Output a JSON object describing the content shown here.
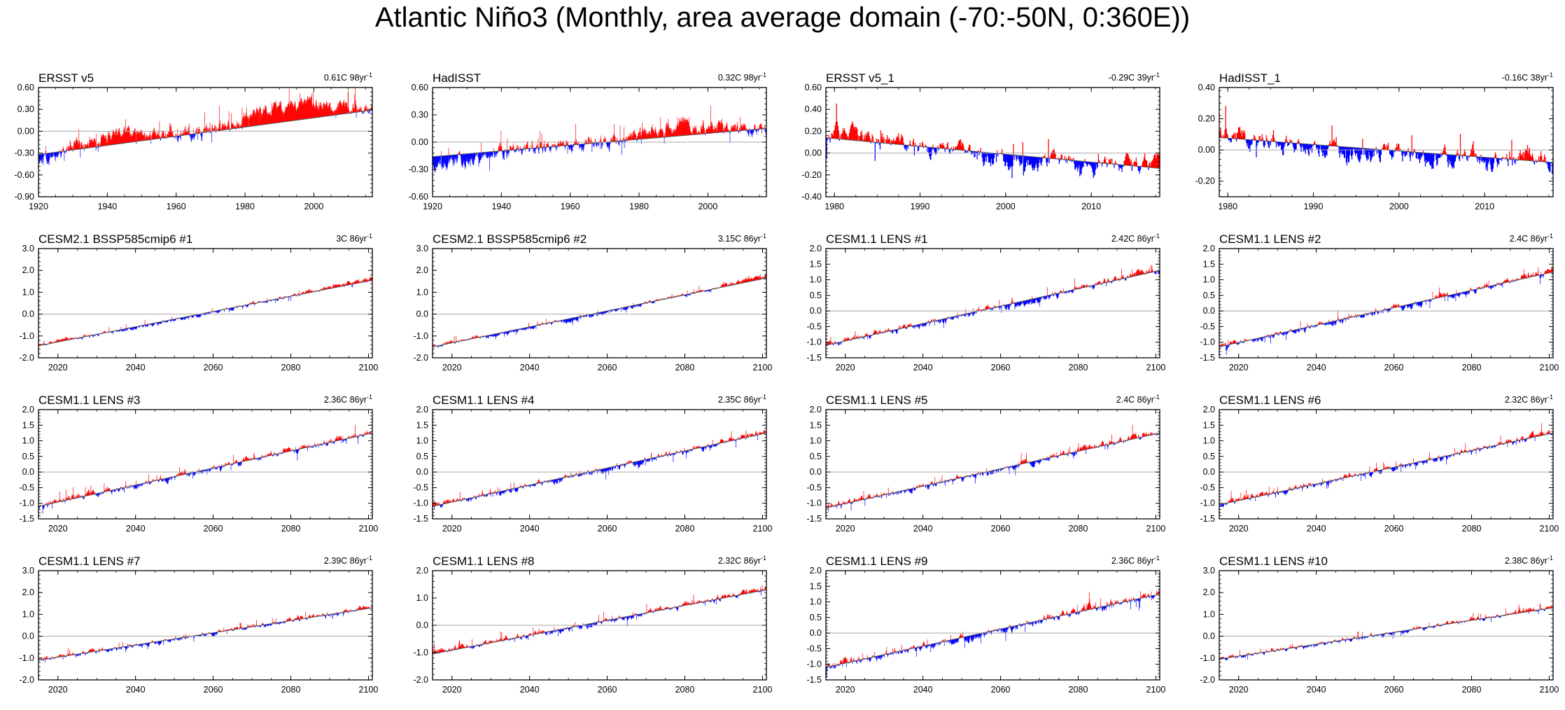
{
  "title": "Atlantic Niño3 (Monthly, area average domain (-70:-50N, 0:360E))",
  "colors": {
    "positive": "#ff0000",
    "negative": "#0000ff",
    "axis": "#000000",
    "zero_line": "#a8a8a8"
  },
  "chart_data": [
    {
      "type": "area",
      "title": "ERSST v5",
      "trend_value": "0.61C 98yr",
      "trend_exp": "-1",
      "xlim": [
        1920,
        2017
      ],
      "xticks": [
        "1920",
        "1940",
        "1960",
        "1980",
        "2000"
      ],
      "ylim": [
        -0.9,
        0.6
      ],
      "yticks": [
        "0.60",
        "0.30",
        "0.00",
        "-0.30",
        "-0.60",
        "-0.90"
      ],
      "trend": [
        -0.32,
        0.29
      ],
      "bias": [
        -0.05,
        0.12,
        0.0,
        0.24,
        0.0
      ],
      "noise": 0.1,
      "seed": 11
    },
    {
      "type": "area",
      "title": "HadISST",
      "trend_value": "0.32C 98yr",
      "trend_exp": "-1",
      "xlim": [
        1920,
        2017
      ],
      "xticks": [
        "1920",
        "1940",
        "1960",
        "1980",
        "2000"
      ],
      "ylim": [
        -0.6,
        0.6
      ],
      "yticks": [
        "0.60",
        "0.30",
        "0.00",
        "-0.30",
        "-0.60"
      ],
      "trend": [
        -0.16,
        0.15
      ],
      "bias": [
        -0.08,
        0.0,
        0.0,
        0.12,
        -0.02
      ],
      "noise": 0.08,
      "seed": 23
    },
    {
      "type": "area",
      "title": "ERSST v5_1",
      "trend_value": "-0.29C 39yr",
      "trend_exp": "-1",
      "xlim": [
        1979,
        2018
      ],
      "xticks": [
        "1980",
        "1990",
        "2000",
        "2010"
      ],
      "ylim": [
        -0.4,
        0.6
      ],
      "yticks": [
        "0.60",
        "0.40",
        "0.20",
        "0.00",
        "-0.20",
        "-0.40"
      ],
      "trend": [
        0.14,
        -0.14
      ],
      "bias": [
        0.05,
        0.0,
        -0.05,
        -0.04,
        0.06
      ],
      "noise": 0.1,
      "seed": 37
    },
    {
      "type": "area",
      "title": "HadISST_1",
      "trend_value": "-0.16C 38yr",
      "trend_exp": "-1",
      "xlim": [
        1979,
        2018
      ],
      "xticks": [
        "1980",
        "1990",
        "2000",
        "2010"
      ],
      "ylim": [
        -0.3,
        0.4
      ],
      "yticks": [
        "0.40",
        "0.20",
        "0.00",
        "-0.20"
      ],
      "trend": [
        0.08,
        -0.08
      ],
      "bias": [
        0.03,
        0.0,
        -0.02,
        -0.03,
        0.03
      ],
      "noise": 0.08,
      "seed": 41
    },
    {
      "type": "area",
      "title": "CESM2.1 BSSP585cmip6 #1",
      "trend_value": "3C 86yr",
      "trend_exp": "-1",
      "xlim": [
        2015,
        2101
      ],
      "xticks": [
        "2020",
        "2040",
        "2060",
        "2080",
        "2100"
      ],
      "ylim": [
        -2.0,
        3.0
      ],
      "yticks": [
        "3.0",
        "2.0",
        "1.0",
        "0.0",
        "-1.0",
        "-2.0"
      ],
      "trend": [
        -1.45,
        1.55
      ],
      "bias": [
        0.1,
        -0.05,
        -0.05,
        0.0,
        0.12
      ],
      "noise": 0.1,
      "seed": 53
    },
    {
      "type": "area",
      "title": "CESM2.1 BSSP585cmip6 #2",
      "trend_value": "3.15C 86yr",
      "trend_exp": "-1",
      "xlim": [
        2015,
        2101
      ],
      "xticks": [
        "2020",
        "2040",
        "2060",
        "2080",
        "2100"
      ],
      "ylim": [
        -2.0,
        3.0
      ],
      "yticks": [
        "3.0",
        "2.0",
        "1.0",
        "0.0",
        "-1.0",
        "-2.0"
      ],
      "trend": [
        -1.5,
        1.65
      ],
      "bias": [
        0.08,
        -0.05,
        -0.05,
        0.0,
        0.12
      ],
      "noise": 0.1,
      "seed": 67
    },
    {
      "type": "area",
      "title": "CESM1.1 LENS #1",
      "trend_value": "2.42C 86yr",
      "trend_exp": "-1",
      "xlim": [
        2015,
        2101
      ],
      "xticks": [
        "2020",
        "2040",
        "2060",
        "2080",
        "2100"
      ],
      "ylim": [
        -1.5,
        2.0
      ],
      "yticks": [
        "2.0",
        "1.5",
        "1.0",
        "0.5",
        "0.0",
        "-0.5",
        "-1.0",
        "-1.5"
      ],
      "trend": [
        -1.1,
        1.3
      ],
      "bias": [
        0.05,
        -0.03,
        -0.04,
        0.0,
        0.05
      ],
      "noise": 0.12,
      "seed": 71
    },
    {
      "type": "area",
      "title": "CESM1.1 LENS #2",
      "trend_value": "2.4C 86yr",
      "trend_exp": "-1",
      "xlim": [
        2015,
        2101
      ],
      "xticks": [
        "2020",
        "2040",
        "2060",
        "2080",
        "2100"
      ],
      "ylim": [
        -1.5,
        2.0
      ],
      "yticks": [
        "2.0",
        "1.5",
        "1.0",
        "0.5",
        "0.0",
        "-0.5",
        "-1.0",
        "-1.5"
      ],
      "trend": [
        -1.15,
        1.25
      ],
      "bias": [
        0.03,
        -0.03,
        -0.04,
        0.0,
        0.05
      ],
      "noise": 0.12,
      "seed": 83
    },
    {
      "type": "area",
      "title": "CESM1.1 LENS #3",
      "trend_value": "2.36C 86yr",
      "trend_exp": "-1",
      "xlim": [
        2015,
        2101
      ],
      "xticks": [
        "2020",
        "2040",
        "2060",
        "2080",
        "2100"
      ],
      "ylim": [
        -1.5,
        2.0
      ],
      "yticks": [
        "2.0",
        "1.5",
        "1.0",
        "0.5",
        "0.0",
        "-0.5",
        "-1.0",
        "-1.5"
      ],
      "trend": [
        -1.1,
        1.25
      ],
      "bias": [
        0.05,
        0.0,
        -0.04,
        0.0,
        0.03
      ],
      "noise": 0.12,
      "seed": 97
    },
    {
      "type": "area",
      "title": "CESM1.1 LENS #4",
      "trend_value": "2.35C 86yr",
      "trend_exp": "-1",
      "xlim": [
        2015,
        2101
      ],
      "xticks": [
        "2020",
        "2040",
        "2060",
        "2080",
        "2100"
      ],
      "ylim": [
        -1.5,
        2.0
      ],
      "yticks": [
        "2.0",
        "1.5",
        "1.0",
        "0.5",
        "0.0",
        "-0.5",
        "-1.0",
        "-1.5"
      ],
      "trend": [
        -1.1,
        1.25
      ],
      "bias": [
        0.04,
        -0.03,
        -0.04,
        0.0,
        0.04
      ],
      "noise": 0.12,
      "seed": 101
    },
    {
      "type": "area",
      "title": "CESM1.1 LENS #5",
      "trend_value": "2.4C 86yr",
      "trend_exp": "-1",
      "xlim": [
        2015,
        2101
      ],
      "xticks": [
        "2020",
        "2040",
        "2060",
        "2080",
        "2100"
      ],
      "ylim": [
        -1.5,
        2.0
      ],
      "yticks": [
        "2.0",
        "1.5",
        "1.0",
        "0.5",
        "0.0",
        "-0.5",
        "-1.0",
        "-1.5"
      ],
      "trend": [
        -1.15,
        1.25
      ],
      "bias": [
        0.06,
        -0.03,
        -0.04,
        0.03,
        0.04
      ],
      "noise": 0.12,
      "seed": 113
    },
    {
      "type": "area",
      "title": "CESM1.1 LENS #6",
      "trend_value": "2.32C 86yr",
      "trend_exp": "-1",
      "xlim": [
        2015,
        2101
      ],
      "xticks": [
        "2020",
        "2040",
        "2060",
        "2080",
        "2100"
      ],
      "ylim": [
        -1.5,
        2.0
      ],
      "yticks": [
        "2.0",
        "1.5",
        "1.0",
        "0.5",
        "0.0",
        "-0.5",
        "-1.0",
        "-1.5"
      ],
      "trend": [
        -1.05,
        1.25
      ],
      "bias": [
        0.05,
        0.0,
        -0.05,
        0.0,
        0.05
      ],
      "noise": 0.12,
      "seed": 127
    },
    {
      "type": "area",
      "title": "CESM1.1 LENS #7",
      "trend_value": "2.39C 86yr",
      "trend_exp": "-1",
      "xlim": [
        2015,
        2101
      ],
      "xticks": [
        "2020",
        "2040",
        "2060",
        "2080",
        "2100"
      ],
      "ylim": [
        -2.0,
        3.0
      ],
      "yticks": [
        "3.0",
        "2.0",
        "1.0",
        "0.0",
        "-1.0",
        "-2.0"
      ],
      "trend": [
        -1.1,
        1.3
      ],
      "bias": [
        0.03,
        -0.03,
        -0.03,
        0.0,
        0.05
      ],
      "noise": 0.12,
      "seed": 131
    },
    {
      "type": "area",
      "title": "CESM1.1 LENS #8",
      "trend_value": "2.32C 86yr",
      "trend_exp": "-1",
      "xlim": [
        2015,
        2101
      ],
      "xticks": [
        "2020",
        "2040",
        "2060",
        "2080",
        "2100"
      ],
      "ylim": [
        -2.0,
        2.0
      ],
      "yticks": [
        "2.0",
        "1.0",
        "0.0",
        "-1.0",
        "-2.0"
      ],
      "trend": [
        -1.05,
        1.3
      ],
      "bias": [
        0.08,
        0.0,
        -0.05,
        0.02,
        0.06
      ],
      "noise": 0.12,
      "seed": 149
    },
    {
      "type": "area",
      "title": "CESM1.1 LENS #9",
      "trend_value": "2.36C 86yr",
      "trend_exp": "-1",
      "xlim": [
        2015,
        2101
      ],
      "xticks": [
        "2020",
        "2040",
        "2060",
        "2080",
        "2100"
      ],
      "ylim": [
        -1.5,
        2.0
      ],
      "yticks": [
        "2.0",
        "1.5",
        "1.0",
        "0.5",
        "0.0",
        "-0.5",
        "-1.0",
        "-1.5"
      ],
      "trend": [
        -1.1,
        1.25
      ],
      "bias": [
        0.05,
        -0.03,
        -0.04,
        0.02,
        0.05
      ],
      "noise": 0.14,
      "seed": 157
    },
    {
      "type": "area",
      "title": "CESM1.1 LENS #10",
      "trend_value": "2.38C 86yr",
      "trend_exp": "-1",
      "xlim": [
        2015,
        2101
      ],
      "xticks": [
        "2020",
        "2040",
        "2060",
        "2080",
        "2100"
      ],
      "ylim": [
        -2.0,
        3.0
      ],
      "yticks": [
        "3.0",
        "2.0",
        "1.0",
        "0.0",
        "-1.0",
        "-2.0"
      ],
      "trend": [
        -1.05,
        1.3
      ],
      "bias": [
        0.04,
        -0.03,
        -0.03,
        0.0,
        0.04
      ],
      "noise": 0.12,
      "seed": 163
    }
  ]
}
